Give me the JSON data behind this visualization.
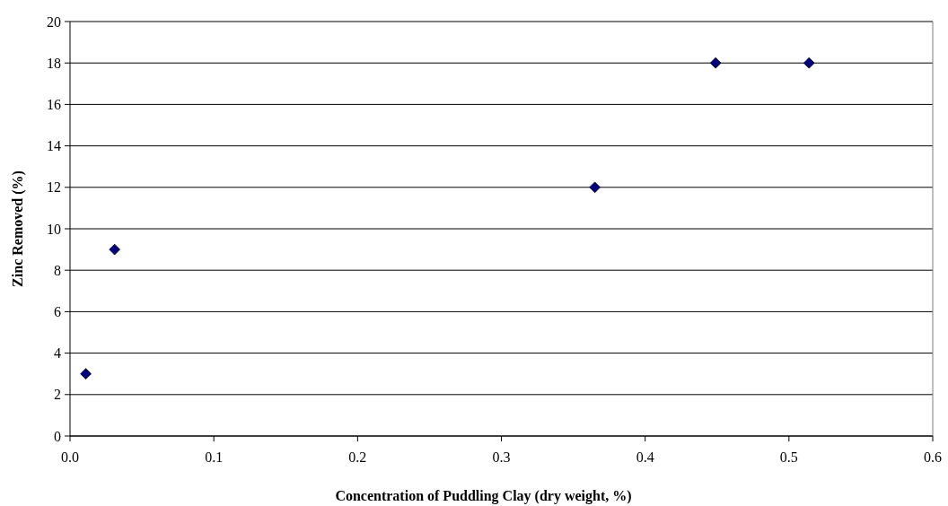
{
  "chart_data": {
    "type": "scatter",
    "xlabel": "Concentration of Puddling Clay (dry weight, %)",
    "ylabel": "Zinc Removed (%)",
    "x": [
      0.011,
      0.031,
      0.365,
      0.449,
      0.514
    ],
    "series": [
      {
        "color": "#000080",
        "values": [
          3,
          9,
          12,
          18,
          18
        ]
      }
    ],
    "xlim": [
      0,
      0.6
    ],
    "xticks": [
      {
        "value": 0,
        "label": "0.0"
      },
      0.1,
      0.2,
      0.3,
      0.4,
      0.5,
      0.6
    ],
    "ylim": [
      0,
      20
    ],
    "yticks": [
      0,
      2,
      4,
      6,
      8,
      10,
      12,
      14,
      16,
      18,
      20
    ],
    "grid": "y",
    "marker": "diamond"
  }
}
